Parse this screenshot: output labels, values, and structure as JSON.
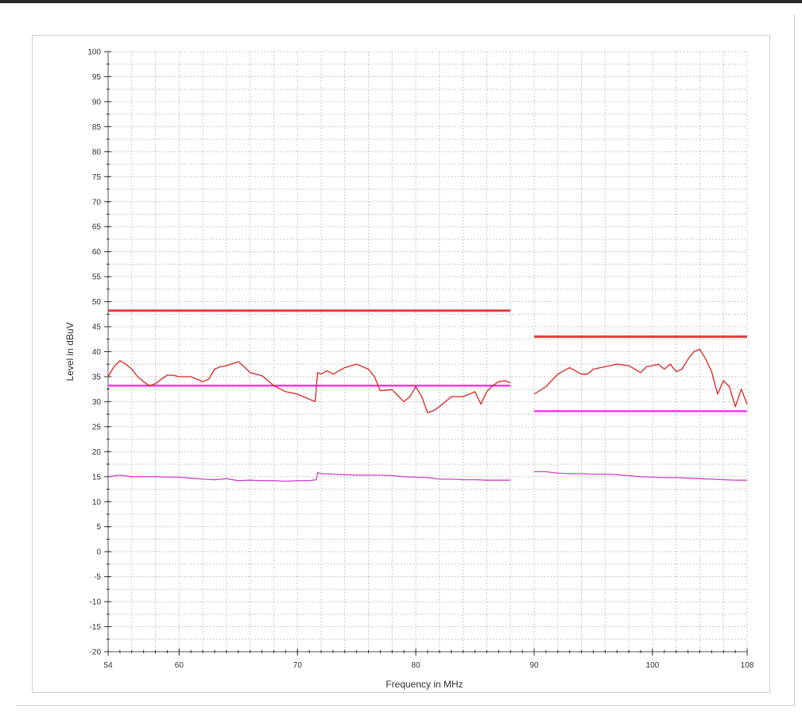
{
  "chart_data": {
    "type": "line",
    "xlabel": "Frequency in MHz",
    "ylabel": "Level in dBuV",
    "xlim": [
      54,
      108
    ],
    "ylim": [
      -20,
      100
    ],
    "x_ticks": [
      54,
      60,
      70,
      80,
      90,
      100,
      108
    ],
    "y_ticks": [
      100,
      95,
      90,
      85,
      80,
      75,
      70,
      65,
      60,
      55,
      50,
      45,
      40,
      35,
      30,
      25,
      20,
      15,
      10,
      5,
      0,
      -5,
      -10,
      -15,
      -20
    ],
    "grid": true,
    "legend": "none",
    "series": [
      {
        "color": "#d9413b",
        "width": 3,
        "x": [
          54,
          88
        ],
        "y": [
          48.2,
          48.2
        ]
      },
      {
        "color": "#d9413b",
        "width": 3,
        "x": [
          90,
          108
        ],
        "y": [
          43,
          43
        ]
      },
      {
        "color": "#ff33ff",
        "width": 2.5,
        "x": [
          54,
          88
        ],
        "y": [
          33.2,
          33.2
        ]
      },
      {
        "color": "#ff33ff",
        "width": 2.5,
        "x": [
          90,
          108
        ],
        "y": [
          28.1,
          28.1
        ]
      },
      {
        "color": "#dd2222",
        "width": 1.3,
        "x": [
          54,
          54.5,
          55,
          55.5,
          56,
          56.5,
          57,
          57.5,
          58,
          58.5,
          59,
          59.5,
          60,
          61,
          62,
          62.5,
          63,
          63.5,
          64,
          65,
          65.5,
          66,
          67,
          68,
          69,
          70,
          71,
          71.5,
          71.7,
          72,
          72.5,
          73,
          74,
          75,
          75.5,
          76,
          76.5,
          77,
          78,
          79,
          79.5,
          80,
          80.5,
          81,
          81.5,
          82,
          83,
          84,
          85,
          85.5,
          86,
          86.5,
          87,
          87.5,
          88
        ],
        "y": [
          35,
          37,
          38.2,
          37.5,
          36.5,
          35,
          34,
          33.2,
          33.6,
          34.5,
          35.3,
          35.3,
          35,
          35,
          34,
          34.5,
          36.5,
          37,
          37.2,
          38,
          37,
          35.8,
          35.2,
          33.2,
          32,
          31.5,
          30.5,
          30,
          35.8,
          35.5,
          36.2,
          35.5,
          36.8,
          37.5,
          37,
          36.5,
          35,
          32.2,
          32.4,
          30,
          31,
          33,
          31,
          27.8,
          28.2,
          29,
          31,
          31,
          32,
          29.5,
          32,
          33.2,
          34,
          34.2,
          33.8
        ]
      },
      {
        "color": "#dd2222",
        "width": 1.3,
        "x": [
          90,
          91,
          92,
          93,
          94,
          94.5,
          95,
          96,
          97,
          98,
          99,
          99.5,
          100,
          100.5,
          101,
          101.5,
          102,
          102.5,
          103,
          103.5,
          104,
          104.5,
          105,
          105.5,
          106,
          106.5,
          107,
          107.5,
          108
        ],
        "y": [
          31.5,
          33,
          35.5,
          36.8,
          35.5,
          35.5,
          36.5,
          37,
          37.5,
          37.2,
          35.8,
          37,
          37.2,
          37.5,
          36.5,
          37.5,
          36,
          36.5,
          38.5,
          40,
          40.5,
          38.5,
          36,
          31.5,
          34.2,
          33,
          29,
          32.5,
          29.5
        ]
      },
      {
        "color": "#cc44cc",
        "width": 1.3,
        "x": [
          54,
          55,
          56,
          57,
          58,
          59,
          60,
          61,
          62,
          63,
          64,
          65,
          66,
          67,
          68,
          69,
          70,
          71,
          71.6,
          71.7,
          72,
          73,
          74,
          75,
          76,
          77,
          78,
          79,
          80,
          81,
          82,
          83,
          84,
          85,
          86,
          87,
          88
        ],
        "y": [
          15,
          15.3,
          15,
          15,
          15,
          14.9,
          14.9,
          14.7,
          14.5,
          14.4,
          14.6,
          14.2,
          14.3,
          14.2,
          14.2,
          14.1,
          14.2,
          14.2,
          14.4,
          15.8,
          15.6,
          15.5,
          15.4,
          15.3,
          15.3,
          15.3,
          15.2,
          15,
          14.9,
          14.8,
          14.5,
          14.5,
          14.4,
          14.4,
          14.3,
          14.3,
          14.3
        ]
      },
      {
        "color": "#cc44cc",
        "width": 1.3,
        "x": [
          90,
          91,
          92,
          93,
          94,
          95,
          96,
          97,
          98,
          99,
          100,
          101,
          102,
          103,
          104,
          105,
          106,
          107,
          108
        ],
        "y": [
          16,
          16,
          15.7,
          15.6,
          15.6,
          15.5,
          15.5,
          15.4,
          15.2,
          15,
          14.9,
          14.8,
          14.8,
          14.7,
          14.6,
          14.5,
          14.4,
          14.3,
          14.3
        ]
      }
    ]
  }
}
